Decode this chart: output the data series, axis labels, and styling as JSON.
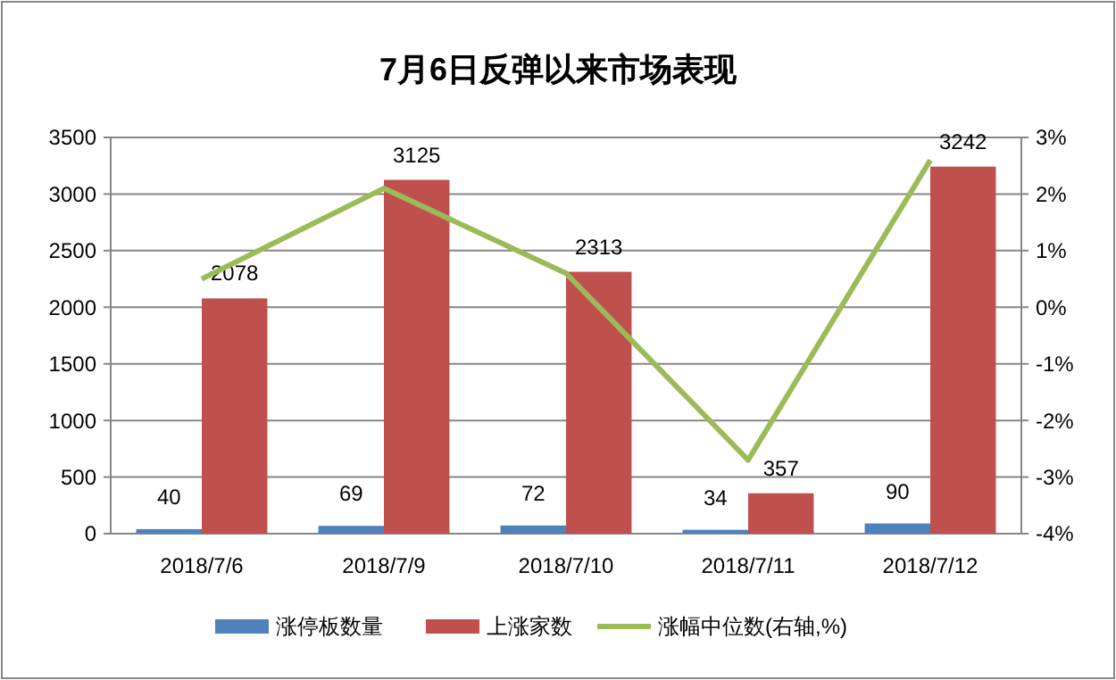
{
  "chart_data": {
    "type": "bar",
    "title": "7月6日反弹以来市场表现",
    "categories": [
      "2018/7/6",
      "2018/7/9",
      "2018/7/10",
      "2018/7/11",
      "2018/7/12"
    ],
    "series": [
      {
        "name": "涨停板数量",
        "color": "#4f81bd",
        "values": [
          40,
          69,
          72,
          34,
          90
        ],
        "value_labels": [
          "40",
          "69",
          "72",
          "34",
          "90"
        ]
      },
      {
        "name": "上涨家数",
        "color": "#c0504d",
        "values": [
          2078,
          3125,
          2313,
          357,
          3242
        ],
        "value_labels": [
          "2078",
          "3125",
          "2313",
          "357",
          "3242"
        ]
      },
      {
        "name": "涨幅中位数(右轴,%)",
        "type": "line",
        "axis": "y2",
        "color": "#9bbb59",
        "values": [
          0.5,
          2.1,
          0.6,
          -2.7,
          2.6
        ]
      }
    ],
    "ylim": [
      0,
      3500
    ],
    "yticks": [
      0,
      500,
      1000,
      1500,
      2000,
      2500,
      3000,
      3500
    ],
    "y2lim": [
      -4,
      3
    ],
    "y2ticks": [
      {
        "value": -4,
        "label": "-4%"
      },
      {
        "value": -3,
        "label": "-3%"
      },
      {
        "value": -2,
        "label": "-2%"
      },
      {
        "value": -1,
        "label": "-1%"
      },
      {
        "value": 0,
        "label": "0%"
      },
      {
        "value": 1,
        "label": "1%"
      },
      {
        "value": 2,
        "label": "2%"
      },
      {
        "value": 3,
        "label": "3%"
      }
    ],
    "grid": "y",
    "legend": "bottom"
  }
}
